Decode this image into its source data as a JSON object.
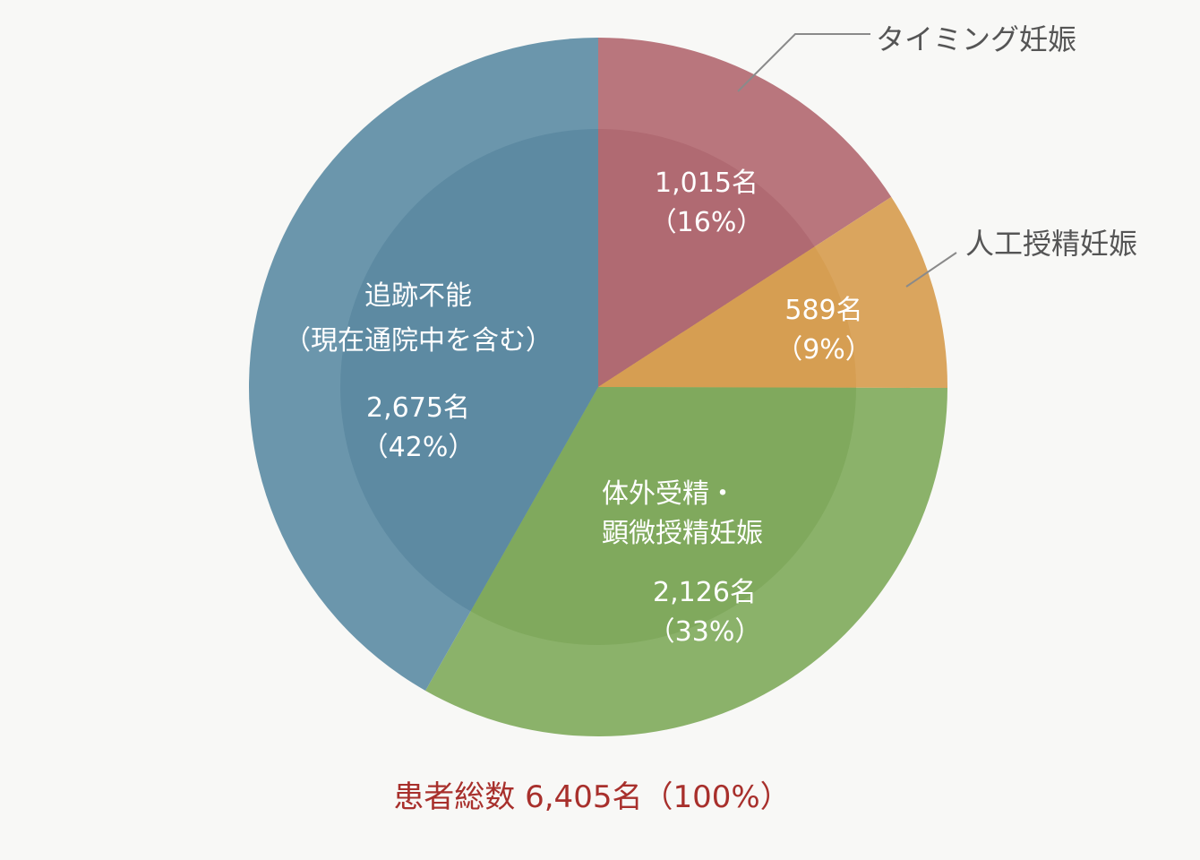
{
  "chart_data": {
    "type": "pie",
    "series": [
      {
        "name": "",
        "slices": [
          {
            "label": "タイミング妊娠",
            "count_label": "1,015名",
            "percent_label": "（16%）",
            "value": 1015,
            "color": "#b9767d",
            "inner_color": "#b06a72"
          },
          {
            "label": "人工授精妊娠",
            "count_label": "589名",
            "percent_label": "（9%）",
            "value": 589,
            "color": "#daa55e",
            "inner_color": "#d69e52"
          },
          {
            "label_lines": [
              "体外受精・",
              "顕微授精妊娠"
            ],
            "count_label": "2,126名",
            "percent_label": "（33%）",
            "value": 2126,
            "color": "#8bb26a",
            "inner_color": "#80a95d"
          },
          {
            "label_lines": [
              "追跡不能",
              "（現在通院中を含む）"
            ],
            "count_label": "2,675名",
            "percent_label": "（42%）",
            "value": 2675,
            "color": "#6b96ac",
            "inner_color": "#5d8aa2"
          }
        ]
      }
    ],
    "total": {
      "text": "患者総数 6,405名（100%）",
      "value": 6405
    }
  }
}
